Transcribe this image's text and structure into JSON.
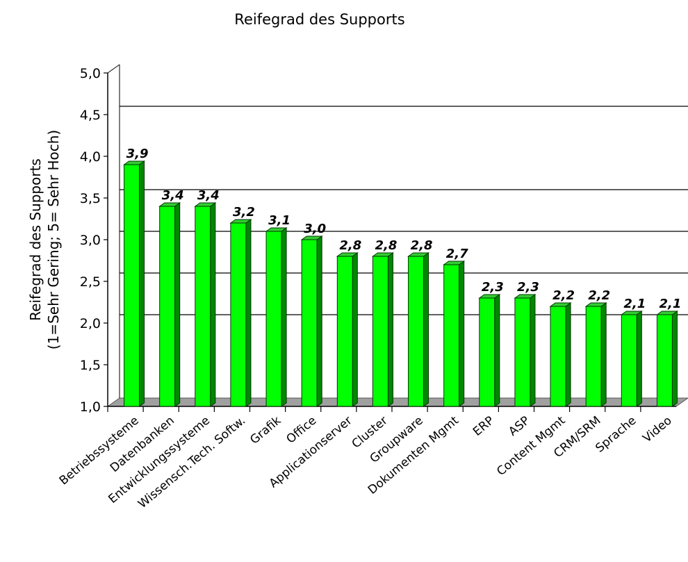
{
  "chart_data": {
    "type": "bar",
    "title": "Reifegrad des Supports",
    "ylabel_lines": [
      "Reifegrad des Supports",
      "(1=Sehr Gering; 5= Sehr Hoch)"
    ],
    "xlabel": "",
    "categories": [
      "Betriebssysteme",
      "Datenbanken",
      "Entwicklungssysteme",
      "Wissensch.Tech. Softw.",
      "Grafik",
      "Office",
      "Applicationserver",
      "Cluster",
      "Groupware",
      "Dokumenten Mgmt",
      "ERP",
      "ASP",
      "Content Mgmt",
      "CRM/SRM",
      "Sprache",
      "Video"
    ],
    "values": [
      3.9,
      3.4,
      3.4,
      3.2,
      3.1,
      3.0,
      2.8,
      2.8,
      2.8,
      2.7,
      2.3,
      2.3,
      2.2,
      2.2,
      2.1,
      2.1
    ],
    "value_labels": [
      "3,9",
      "3,4",
      "3,4",
      "3,2",
      "3,1",
      "3,0",
      "2,8",
      "2,8",
      "2,8",
      "2,7",
      "2,3",
      "2,3",
      "2,2",
      "2,2",
      "2,1",
      "2,1"
    ],
    "ylim": [
      1.0,
      5.0
    ],
    "yticks": [
      "1,0",
      "1,5",
      "2,0",
      "2,5",
      "3,0",
      "3,5",
      "4,0",
      "4,5",
      "5,0"
    ],
    "gridlines": [
      2.0,
      2.5,
      3.0,
      3.5,
      4.5
    ],
    "legend": "none",
    "colors": {
      "bar_front": "#00ff00",
      "bar_side": "#008800",
      "bar_top": "#33cc33",
      "floor": "#a0a0a0",
      "grid": "#000000"
    }
  }
}
